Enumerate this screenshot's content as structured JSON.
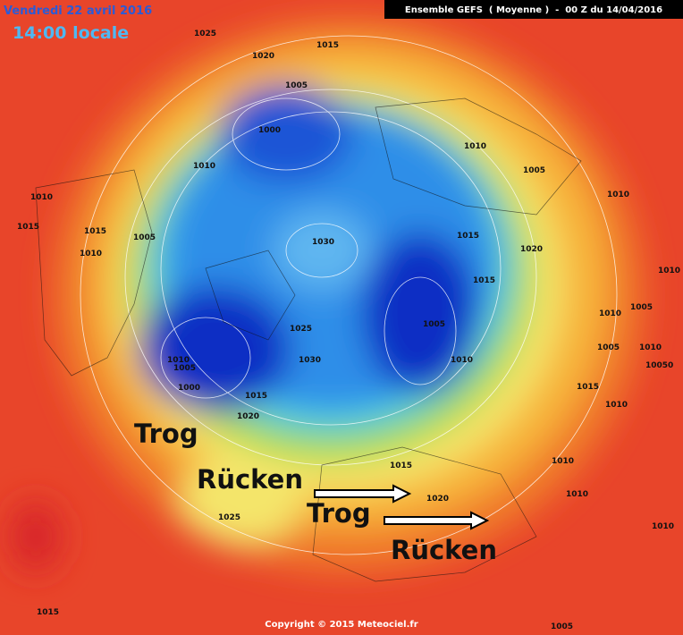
{
  "header": {
    "date": "Vendredi 22 avril 2016",
    "time": "14:00 locale",
    "model": "Ensemble GEFS  ( Moyenne )  -  00 Z du 14/04/2016"
  },
  "annotations": [
    "Trog",
    "Rücken",
    "Trog",
    "Rücken"
  ],
  "isobar_labels": [
    1025,
    1020,
    1015,
    1005,
    1000,
    1010,
    1010,
    1005,
    1010,
    1010,
    1015,
    1015,
    1005,
    1010,
    1030,
    1015,
    1020,
    1015,
    1010,
    1005,
    1010,
    1005,
    1025,
    1010,
    1005,
    1030,
    1010,
    1005,
    1010,
    10050,
    1000,
    1015,
    1015,
    1010,
    1020,
    1015,
    1010,
    1010,
    1020,
    1010,
    1025,
    1015,
    1005
  ],
  "footer": "Copyright © 2015 Meteociel.fr"
}
